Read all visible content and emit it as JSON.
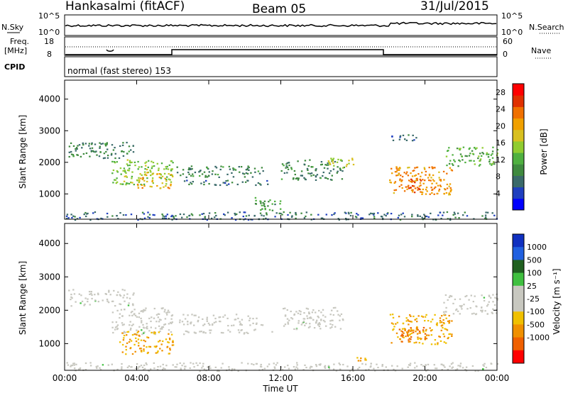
{
  "header": {
    "station": "Hankasalmi (fitACF)",
    "beam": "Beam 05",
    "date": "31/Jul/2015"
  },
  "mini_panels": {
    "nsky_label": "N.Sky",
    "nsearch_label": "N.Search",
    "freq_label_top": "Freq.",
    "freq_label_unit": "[MHz]",
    "nave_label": "Nave",
    "cpid_label": "CPID",
    "left_ticks_top": [
      "10^5",
      "10^0"
    ],
    "right_ticks_top": [
      "10^5",
      "10^0"
    ],
    "left_ticks_freq": [
      "18",
      "8"
    ],
    "right_ticks_nave": [
      "60",
      "0"
    ],
    "cpid_text": "normal (fast stereo) 153"
  },
  "colors": {
    "power_scale": [
      "#0000ff",
      "#1f3fbf",
      "#3a6a6a",
      "#3f8a3f",
      "#4fb040",
      "#90cc30",
      "#d8c020",
      "#f0a000",
      "#f07000",
      "#e03000",
      "#ff0000"
    ],
    "velocity_scale": [
      "#1030c0",
      "#2060e0",
      "#206020",
      "#40c040",
      "#c8c8c0",
      "#c8c8c0",
      "#f0c000",
      "#f09000",
      "#f06000",
      "#ff0000"
    ]
  },
  "chart_data": [
    {
      "type": "heatmap",
      "name": "power-panel",
      "ylabel": "Slant Range [km]",
      "yticks": [
        "1000",
        "2000",
        "3000",
        "4000"
      ],
      "ylim": [
        200,
        4600
      ],
      "colorbar_label": "Power [dB]",
      "colorbar_ticks": [
        "4",
        "8",
        "12",
        "16",
        "20",
        "24",
        "28"
      ],
      "colorbar_range": [
        0,
        30
      ],
      "bands": [
        {
          "t0": 0.2,
          "t1": 3.8,
          "r0": 2150,
          "r1": 2650,
          "v": 8
        },
        {
          "t0": 2.6,
          "t1": 6.0,
          "r0": 1300,
          "r1": 2100,
          "v": 14
        },
        {
          "t0": 4.0,
          "t1": 6.0,
          "r0": 1200,
          "r1": 1700,
          "v": 20
        },
        {
          "t0": 6.2,
          "t1": 11.0,
          "r0": 1550,
          "r1": 1900,
          "v": 8
        },
        {
          "t0": 6.5,
          "t1": 11.5,
          "r0": 1300,
          "r1": 1450,
          "v": 6
        },
        {
          "t0": 12.0,
          "t1": 15.5,
          "r0": 1450,
          "r1": 2100,
          "v": 8
        },
        {
          "t0": 14.5,
          "t1": 16.0,
          "r0": 1850,
          "r1": 2150,
          "v": 16
        },
        {
          "t0": 18.0,
          "t1": 19.5,
          "r0": 2700,
          "r1": 2900,
          "v": 6
        },
        {
          "t0": 18.0,
          "t1": 21.5,
          "r0": 1000,
          "r1": 1900,
          "v": 22
        },
        {
          "t0": 19.0,
          "t1": 20.0,
          "r0": 1050,
          "r1": 1500,
          "v": 26
        },
        {
          "t0": 21.0,
          "t1": 24.0,
          "r0": 1900,
          "r1": 2500,
          "v": 12
        },
        {
          "t0": 0.0,
          "t1": 24.0,
          "r0": 200,
          "r1": 450,
          "v": 6
        },
        {
          "t0": 10.5,
          "t1": 12.0,
          "r0": 500,
          "r1": 900,
          "v": 10
        }
      ]
    },
    {
      "type": "heatmap",
      "name": "velocity-panel",
      "ylabel": "Slant Range [km]",
      "yticks": [
        "1000",
        "2000",
        "3000",
        "4000"
      ],
      "ylim": [
        200,
        4600
      ],
      "colorbar_label": "Velocity [m s⁻¹]",
      "colorbar_ticks": [
        "1000",
        "500",
        "100",
        "25",
        "-25",
        "-100",
        "-500",
        "-1000"
      ],
      "bands": [
        {
          "t0": 0.2,
          "t1": 3.8,
          "r0": 2150,
          "r1": 2650,
          "v": 0
        },
        {
          "t0": 2.6,
          "t1": 6.0,
          "r0": 1300,
          "r1": 2100,
          "v": 0
        },
        {
          "t0": 3.0,
          "t1": 6.0,
          "r0": 700,
          "r1": 1400,
          "v": -150
        },
        {
          "t0": 6.2,
          "t1": 11.0,
          "r0": 1550,
          "r1": 1900,
          "v": 0
        },
        {
          "t0": 6.5,
          "t1": 11.5,
          "r0": 1300,
          "r1": 1450,
          "v": 0
        },
        {
          "t0": 12.0,
          "t1": 15.5,
          "r0": 1450,
          "r1": 2100,
          "v": 0
        },
        {
          "t0": 18.0,
          "t1": 21.5,
          "r0": 1000,
          "r1": 1900,
          "v": -150
        },
        {
          "t0": 18.5,
          "t1": 20.0,
          "r0": 1050,
          "r1": 1500,
          "v": -500
        },
        {
          "t0": 21.0,
          "t1": 24.0,
          "r0": 1900,
          "r1": 2500,
          "v": 0
        },
        {
          "t0": 0.0,
          "t1": 24.0,
          "r0": 200,
          "r1": 450,
          "v": 0
        },
        {
          "t0": 15.8,
          "t1": 17.0,
          "r0": 500,
          "r1": 600,
          "v": -150
        }
      ]
    }
  ],
  "xaxis": {
    "label": "Time UT",
    "ticks": [
      "00:00",
      "04:00",
      "08:00",
      "12:00",
      "16:00",
      "20:00",
      "00:00"
    ],
    "range_hours": [
      0,
      24
    ]
  }
}
